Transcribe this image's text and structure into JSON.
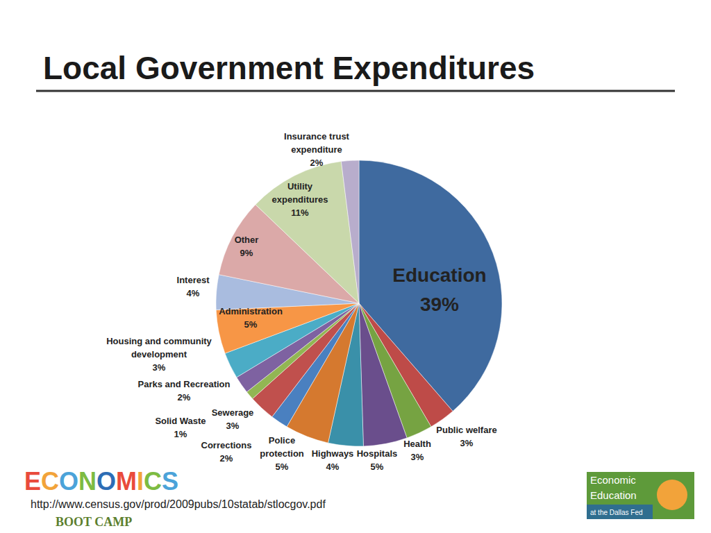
{
  "chart_data": {
    "type": "pie",
    "title": "Local Government Expenditures",
    "categories": [
      "Education",
      "Public welfare",
      "Health",
      "Hospitals",
      "Highways",
      "Police protection",
      "Corrections",
      "Sewerage",
      "Solid Waste",
      "Parks and Recreation",
      "Housing and community development",
      "Administration",
      "Interest",
      "Other",
      "Utility expenditures",
      "Insurance trust expenditure"
    ],
    "values": [
      39,
      3,
      3,
      5,
      4,
      5,
      2,
      3,
      1,
      2,
      3,
      5,
      4,
      9,
      11,
      2
    ],
    "value_labels": [
      "39%",
      "3%",
      "3%",
      "5%",
      "4%",
      "5%",
      "2%",
      "3%",
      "1%",
      "2%",
      "3%",
      "5%",
      "4%",
      "9%",
      "11%",
      "2%"
    ],
    "colors": [
      "#3F6A9F",
      "#BE4B48",
      "#76A342",
      "#6A4E8C",
      "#3A90A9",
      "#D5792F",
      "#4A80C0",
      "#C0504D",
      "#92B653",
      "#7E62A1",
      "#4BACC6",
      "#F79646",
      "#A9BCDF",
      "#DBA9A8",
      "#C9D8AB",
      "#B8ADCC"
    ],
    "data_labels": true
  },
  "source": "http://www.census.gov/prod/2009pubs/10statab/stlocgov.pdf",
  "logos": {
    "left": [
      "ECONOMICS",
      "BOOT CAMP"
    ],
    "right": [
      "Economic",
      "Education",
      "at the Dallas Fed"
    ]
  }
}
